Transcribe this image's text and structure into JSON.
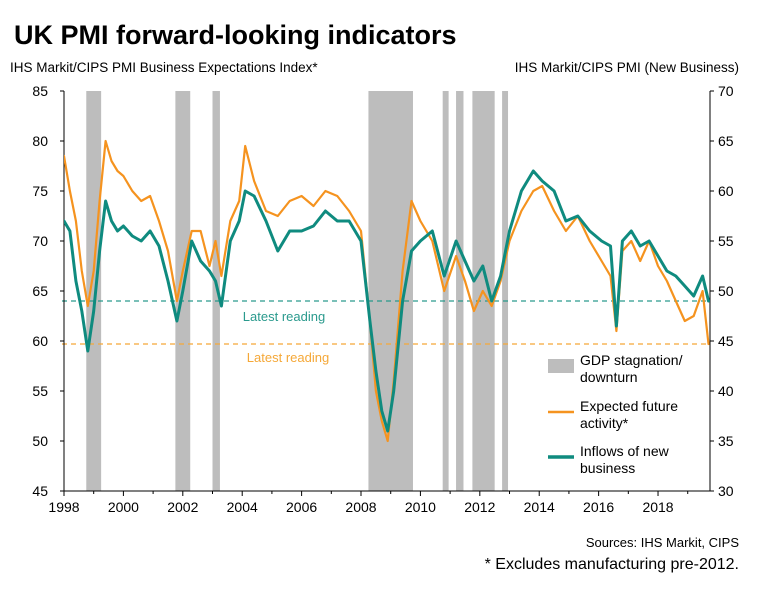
{
  "title": "UK PMI forward-looking indicators",
  "left_axis_title": "IHS Markit/CIPS PMI Business Expectations Index*",
  "right_axis_title": "IHS Markit/CIPS PMI (New Business)",
  "source": "Sources: IHS Markit, CIPS",
  "footnote": "* Excludes manufacturing pre-2012.",
  "colors": {
    "expected": "#f5931f",
    "inflows": "#0f8b7f",
    "shade": "#bdbdbd",
    "expected_ref": "#f5a838",
    "inflows_ref": "#2a9a8d"
  },
  "chart_data": {
    "type": "line",
    "xlabel": "",
    "x_range": [
      1998.0,
      2019.75
    ],
    "x_ticks": [
      "1998",
      "2000",
      "2002",
      "2004",
      "2006",
      "2008",
      "2010",
      "2012",
      "2014",
      "2016",
      "2018"
    ],
    "y_left": {
      "label": "IHS Markit/CIPS PMI Business Expectations Index*",
      "range": [
        45,
        85
      ],
      "ticks": [
        "45",
        "50",
        "55",
        "60",
        "65",
        "70",
        "75",
        "80",
        "85"
      ]
    },
    "y_right": {
      "label": "IHS Markit/CIPS PMI (New Business)",
      "range": [
        30,
        70
      ],
      "ticks": [
        "30",
        "35",
        "40",
        "45",
        "50",
        "55",
        "60",
        "65",
        "70"
      ]
    },
    "shaded_periods": [
      [
        1998.75,
        1999.25
      ],
      [
        2001.75,
        2002.25
      ],
      [
        2003.0,
        2003.25
      ],
      [
        2008.25,
        2009.75
      ],
      [
        2010.75,
        2010.95
      ],
      [
        2011.2,
        2011.45
      ],
      [
        2011.75,
        2012.5
      ],
      [
        2012.75,
        2012.95
      ]
    ],
    "reference_lines": [
      {
        "label": "Latest reading",
        "axis": "left",
        "value": 59.7,
        "series": "Expected future activity*"
      },
      {
        "label": "Latest reading",
        "axis": "right",
        "value": 49.0,
        "series": "Inflows of new business"
      }
    ],
    "legend": [
      {
        "label": "GDP stagnation/ downturn",
        "line1": "GDP stagnation/",
        "line2": "downturn",
        "kind": "shade"
      },
      {
        "label": "Expected future activity*",
        "line1": "Expected future",
        "line2": "activity*",
        "kind": "expected"
      },
      {
        "label": "Inflows of new business",
        "line1": "Inflows of new",
        "line2": "business",
        "kind": "inflows"
      }
    ],
    "series": [
      {
        "name": "Expected future activity*",
        "axis": "left",
        "x": [
          1998.0,
          1998.2,
          1998.4,
          1998.6,
          1998.8,
          1999.0,
          1999.2,
          1999.4,
          1999.6,
          1999.8,
          2000.0,
          2000.3,
          2000.6,
          2000.9,
          2001.2,
          2001.5,
          2001.8,
          2002.0,
          2002.3,
          2002.6,
          2002.9,
          2003.1,
          2003.3,
          2003.6,
          2003.9,
          2004.1,
          2004.4,
          2004.8,
          2005.2,
          2005.6,
          2006.0,
          2006.4,
          2006.8,
          2007.2,
          2007.6,
          2008.0,
          2008.3,
          2008.5,
          2008.7,
          2008.9,
          2009.1,
          2009.4,
          2009.7,
          2010.0,
          2010.4,
          2010.8,
          2011.2,
          2011.5,
          2011.8,
          2012.1,
          2012.4,
          2012.7,
          2013.0,
          2013.4,
          2013.8,
          2014.1,
          2014.5,
          2014.9,
          2015.3,
          2015.7,
          2016.1,
          2016.4,
          2016.6,
          2016.8,
          2017.1,
          2017.4,
          2017.7,
          2018.0,
          2018.3,
          2018.6,
          2018.9,
          2019.2,
          2019.5,
          2019.7
        ],
        "values": [
          78.5,
          75.0,
          72.0,
          67.0,
          63.5,
          67.0,
          74.0,
          80.0,
          78.0,
          77.0,
          76.5,
          75.0,
          74.0,
          74.5,
          72.0,
          69.0,
          64.0,
          67.0,
          71.0,
          71.0,
          67.5,
          70.0,
          66.5,
          72.0,
          74.0,
          79.5,
          76.0,
          73.0,
          72.5,
          74.0,
          74.5,
          73.5,
          75.0,
          74.5,
          73.0,
          71.0,
          62.0,
          55.0,
          52.0,
          50.0,
          56.0,
          67.0,
          74.0,
          72.0,
          70.0,
          65.0,
          68.5,
          66.0,
          63.0,
          65.0,
          63.5,
          66.0,
          70.0,
          73.0,
          75.0,
          75.5,
          73.0,
          71.0,
          72.5,
          70.0,
          68.0,
          66.5,
          61.0,
          69.0,
          70.0,
          68.0,
          70.0,
          67.5,
          66.0,
          64.0,
          62.0,
          62.5,
          65.0,
          59.7
        ]
      },
      {
        "name": "Inflows of new business",
        "axis": "right",
        "x": [
          1998.0,
          1998.2,
          1998.4,
          1998.6,
          1998.8,
          1999.0,
          1999.2,
          1999.4,
          1999.6,
          1999.8,
          2000.0,
          2000.3,
          2000.6,
          2000.9,
          2001.2,
          2001.5,
          2001.8,
          2002.0,
          2002.3,
          2002.6,
          2002.9,
          2003.1,
          2003.3,
          2003.6,
          2003.9,
          2004.1,
          2004.4,
          2004.8,
          2005.2,
          2005.6,
          2006.0,
          2006.4,
          2006.8,
          2007.2,
          2007.6,
          2008.0,
          2008.3,
          2008.5,
          2008.7,
          2008.9,
          2009.1,
          2009.4,
          2009.7,
          2010.0,
          2010.4,
          2010.8,
          2011.2,
          2011.5,
          2011.8,
          2012.1,
          2012.4,
          2012.7,
          2013.0,
          2013.4,
          2013.8,
          2014.1,
          2014.5,
          2014.9,
          2015.3,
          2015.7,
          2016.1,
          2016.4,
          2016.6,
          2016.8,
          2017.1,
          2017.4,
          2017.7,
          2018.0,
          2018.3,
          2018.6,
          2018.9,
          2019.2,
          2019.5,
          2019.7
        ],
        "values": [
          57.0,
          56.0,
          51.0,
          48.0,
          44.0,
          48.0,
          54.0,
          59.0,
          57.0,
          56.0,
          56.5,
          55.5,
          55.0,
          56.0,
          54.5,
          51.0,
          47.0,
          50.0,
          55.0,
          53.0,
          52.0,
          51.0,
          48.5,
          55.0,
          57.0,
          60.0,
          59.5,
          57.0,
          54.0,
          56.0,
          56.0,
          56.5,
          58.0,
          57.0,
          57.0,
          55.0,
          47.0,
          42.0,
          38.0,
          36.0,
          40.0,
          49.0,
          54.0,
          55.0,
          56.0,
          51.5,
          55.0,
          53.0,
          51.0,
          52.5,
          49.0,
          51.5,
          56.0,
          60.0,
          62.0,
          61.0,
          60.0,
          57.0,
          57.5,
          56.0,
          55.0,
          54.5,
          46.5,
          55.0,
          56.0,
          54.5,
          55.0,
          53.5,
          52.0,
          51.5,
          50.5,
          49.5,
          51.5,
          49.0
        ]
      }
    ]
  }
}
